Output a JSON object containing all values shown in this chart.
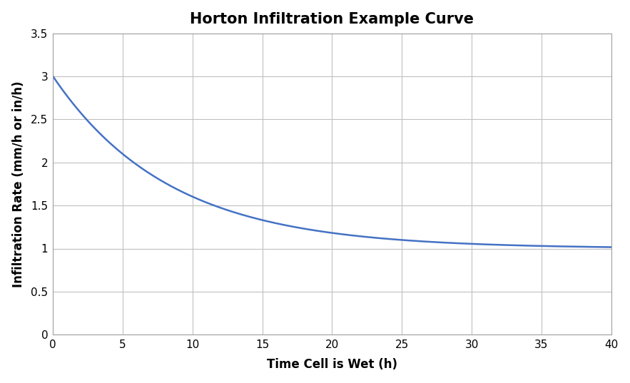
{
  "title": "Horton Infiltration Example Curve",
  "xlabel": "Time Cell is Wet (h)",
  "ylabel": "Infiltration Rate (mm/h or in/h)",
  "xlim": [
    0,
    40
  ],
  "ylim": [
    0,
    3.5
  ],
  "xticks": [
    0,
    5,
    10,
    15,
    20,
    25,
    30,
    35,
    40
  ],
  "yticks": [
    0,
    0.5,
    1.0,
    1.5,
    2.0,
    2.5,
    3.0,
    3.5
  ],
  "f0": 3.0,
  "fc": 1.0,
  "k": 0.12,
  "line_color": "#4472C4",
  "line_width": 1.8,
  "background_color": "#FFFFFF",
  "plot_bg_color": "#FFFFFF",
  "grid_color": "#C0C0C0",
  "spine_color": "#A0A0A0",
  "title_fontsize": 15,
  "axis_label_fontsize": 12,
  "tick_fontsize": 11
}
